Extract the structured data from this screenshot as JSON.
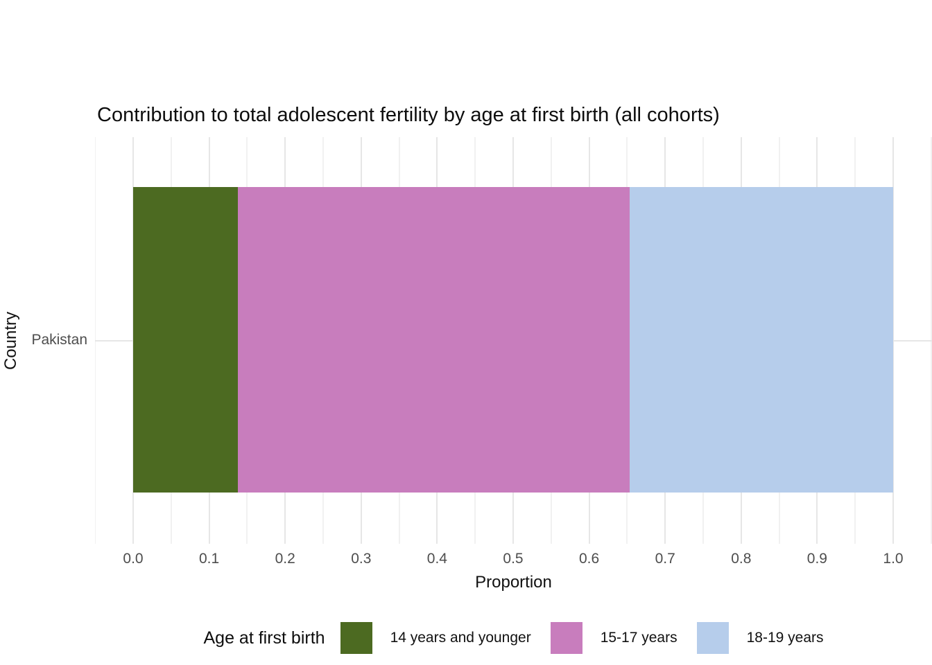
{
  "chart_data": {
    "type": "bar",
    "subtype": "horizontal-stacked",
    "title": "Contribution to total adolescent fertility by age at first birth (all cohorts)",
    "xlabel": "Proportion",
    "ylabel": "Country",
    "categories": [
      "Pakistan"
    ],
    "series": [
      {
        "name": "14 years and younger",
        "values": [
          0.138
        ],
        "color": "#4c6a21"
      },
      {
        "name": "15-17 years",
        "values": [
          0.515
        ],
        "color": "#c87dbd"
      },
      {
        "name": "18-19 years",
        "values": [
          0.347
        ],
        "color": "#b6cdeb"
      }
    ],
    "xlim": [
      0.0,
      1.0
    ],
    "x_tick_values": [
      0.0,
      0.1,
      0.2,
      0.3,
      0.4,
      0.5,
      0.6,
      0.7,
      0.8,
      0.9,
      1.0
    ],
    "x_tick_labels": [
      "0.0",
      "0.1",
      "0.2",
      "0.3",
      "0.4",
      "0.5",
      "0.6",
      "0.7",
      "0.8",
      "0.9",
      "1.0"
    ],
    "grid": {
      "vertical_major": true,
      "vertical_minor": true,
      "horizontal_major": true,
      "major_color": "#e6e6e6",
      "minor_color": "#f1f1f1"
    },
    "legend": {
      "title": "Age at first birth",
      "position": "bottom",
      "entries": [
        "14 years and younger",
        "15-17 years",
        "18-19 years"
      ]
    },
    "colors": {
      "background": "#ffffff",
      "tick_label_text": "#4d4d4d",
      "axis_title_text": "#111111",
      "title_text": "#0d0d0d"
    }
  }
}
